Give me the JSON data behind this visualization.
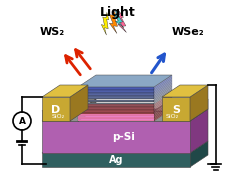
{
  "bg_color": "#ffffff",
  "labels": {
    "WS2": "WS₂",
    "WSe2": "WSe₂",
    "Light": "Light",
    "D": "D",
    "S": "S",
    "SiO2_left": "SiO₂",
    "SiO2_right": "SiO₂",
    "pSi": "p-Si",
    "Ag": "Ag",
    "A": "A"
  },
  "colors": {
    "gold_electrode": "#c8a832",
    "gold_side": "#9a7820",
    "gold_top": "#e0c040",
    "SiO2_front": "#909090",
    "SiO2_side": "#707070",
    "SiO2_top": "#b8b8b8",
    "pSi_front": "#b060b0",
    "pSi_side": "#803880",
    "pSi_top": "#d080d0",
    "Ag_front": "#306060",
    "Ag_side": "#204848",
    "Ag_top": "#409090",
    "wire": "#000000",
    "arrow_red": "#dd2200",
    "arrow_blue": "#2255cc",
    "pink_gap": "#ff88cc",
    "tmd_top": "#7799bb",
    "light_yellow": "#ffee00",
    "light_orange": "#ff8800",
    "light_pink": "#ff6699",
    "light_teal": "#44cccc"
  }
}
